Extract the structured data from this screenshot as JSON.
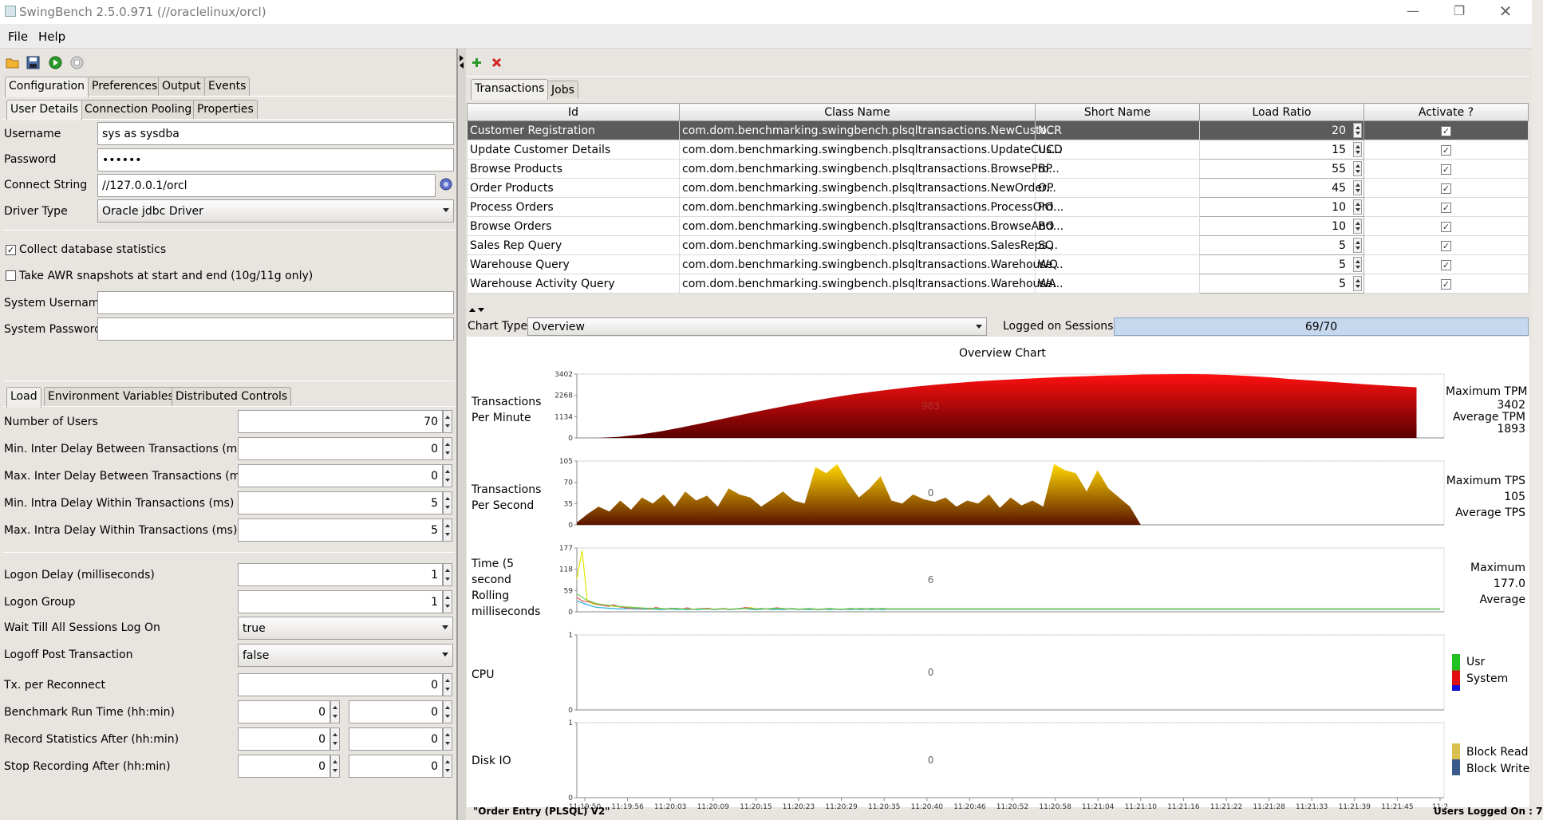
{
  "window": {
    "title": "SwingBench 2.5.0.971  (//oraclelinux/orcl)"
  },
  "menu": {
    "file": "File",
    "help": "Help"
  },
  "config_tabs": {
    "configuration": "Configuration",
    "preferences": "Preferences",
    "output": "Output",
    "events": "Events"
  },
  "user_tabs": {
    "user_details": "User Details",
    "connection_pooling": "Connection Pooling",
    "properties": "Properties"
  },
  "user_details": {
    "username_label": "Username",
    "username": "sys as sysdba",
    "password_label": "Password",
    "password": "••••••",
    "connect_label": "Connect String",
    "connect": "//127.0.0.1/orcl",
    "driver_label": "Driver Type",
    "driver": "Oracle jdbc Driver",
    "collect_stats": "Collect database statistics",
    "awr": "Take AWR snapshots at start and end (10g/11g only)",
    "sys_user_label": "System Username",
    "sys_user": "",
    "sys_pass_label": "System Password",
    "sys_pass": ""
  },
  "load_tabs": {
    "load": "Load",
    "env": "Environment Variables",
    "distributed": "Distributed Controls"
  },
  "load": {
    "users_label": "Number of Users",
    "users": "70",
    "min_inter_label": "Min. Inter Delay Between Transactions (ms)",
    "min_inter": "0",
    "max_inter_label": "Max. Inter Delay Between Transactions (ms)",
    "max_inter": "0",
    "min_intra_label": "Min. Intra Delay Within Transactions (ms)",
    "min_intra": "5",
    "max_intra_label": "Max. Intra Delay Within Transactions (ms)",
    "max_intra": "5",
    "logon_delay_label": "Logon Delay (milliseconds)",
    "logon_delay": "1",
    "logon_group_label": "Logon Group",
    "logon_group": "1",
    "wait_label": "Wait Till All Sessions Log On",
    "wait": "true",
    "logoff_label": "Logoff Post Transaction",
    "logoff": "false",
    "reconnect_label": "Tx. per Reconnect",
    "reconnect": "0",
    "runtime_label": "Benchmark Run Time (hh:min)",
    "runtime_h": "0",
    "runtime_m": "0",
    "record_label": "Record Statistics After (hh:min)",
    "record_h": "0",
    "record_m": "0",
    "stop_label": "Stop Recording After (hh:min)",
    "stop_h": "0",
    "stop_m": "0"
  },
  "right_tabs": {
    "transactions": "Transactions",
    "jobs": "Jobs"
  },
  "table": {
    "headers": [
      "Id",
      "Class Name",
      "Short Name",
      "Load Ratio",
      "Activate ?"
    ],
    "rows": [
      {
        "id": "Customer Registration",
        "cls": "com.dom.benchmarking.swingbench.plsqltransactions.NewCusto...",
        "short": "NCR",
        "ratio": "20",
        "active": "✓"
      },
      {
        "id": "Update Customer Details",
        "cls": "com.dom.benchmarking.swingbench.plsqltransactions.UpdateCus...",
        "short": "UCD",
        "ratio": "15",
        "active": "✓"
      },
      {
        "id": "Browse Products",
        "cls": "com.dom.benchmarking.swingbench.plsqltransactions.BrowsePro...",
        "short": "BP",
        "ratio": "55",
        "active": "✓"
      },
      {
        "id": "Order Products",
        "cls": "com.dom.benchmarking.swingbench.plsqltransactions.NewOrder...",
        "short": "OP",
        "ratio": "45",
        "active": "✓"
      },
      {
        "id": "Process Orders",
        "cls": "com.dom.benchmarking.swingbench.plsqltransactions.ProcessOrd...",
        "short": "PO",
        "ratio": "10",
        "active": "✓"
      },
      {
        "id": "Browse Orders",
        "cls": "com.dom.benchmarking.swingbench.plsqltransactions.BrowseAnd...",
        "short": "BO",
        "ratio": "10",
        "active": "✓"
      },
      {
        "id": "Sales Rep Query",
        "cls": "com.dom.benchmarking.swingbench.plsqltransactions.SalesReps...",
        "short": "SQ",
        "ratio": "5",
        "active": "✓"
      },
      {
        "id": "Warehouse Query",
        "cls": "com.dom.benchmarking.swingbench.plsqltransactions.Warehouse...",
        "short": "WQ",
        "ratio": "5",
        "active": "✓"
      },
      {
        "id": "Warehouse Activity Query",
        "cls": "com.dom.benchmarking.swingbench.plsqltransactions.Warehouse...",
        "short": "WA",
        "ratio": "5",
        "active": "✓"
      }
    ]
  },
  "chart_controls": {
    "type_label": "Chart Type",
    "type": "Overview",
    "sessions_label": "Logged on Sessions",
    "sessions": "69/70"
  },
  "chart": {
    "title": "Overview Chart",
    "tpm_label": "Transactions Per Minute",
    "tpm_center": "983",
    "tpm_right": [
      "Maximum TPM",
      "3402",
      "Average TPM",
      "1893"
    ],
    "tps_label": "Transactions Per Second",
    "tps_center": "0",
    "tps_right": [
      "Maximum TPS",
      "105",
      "Average TPS"
    ],
    "rt_label": "Time (5 second Rolling milliseconds",
    "rt_center": "6",
    "rt_right": [
      "Maximum",
      "177.0",
      "Average"
    ],
    "cpu_label": "CPU",
    "cpu_center": "0",
    "cpu_legend": [
      "Usr",
      "System"
    ],
    "io_label": "Disk IO",
    "io_center": "0",
    "io_legend": [
      "Block Read",
      "Block Write"
    ]
  },
  "chart_data": {
    "type": "area",
    "x_ticks": [
      "11:19:50",
      "11:19:56",
      "11:20:03",
      "11:20:09",
      "11:20:15",
      "11:20:23",
      "11:20:29",
      "11:20:35",
      "11:20:40",
      "11:20:46",
      "11:20:52",
      "11:20:58",
      "11:21:04",
      "11:21:10",
      "11:21:16",
      "11:21:22",
      "11:21:28",
      "11:21:33",
      "11:21:39",
      "11:21:45",
      "11:2"
    ],
    "tpm": {
      "yticks": [
        "3402",
        "2268",
        "1134",
        "0"
      ],
      "ylim": [
        0,
        3402
      ],
      "values": [
        0,
        0,
        60,
        180,
        350,
        560,
        790,
        1030,
        1270,
        1500,
        1720,
        1930,
        2120,
        2300,
        2450,
        2590,
        2720,
        2830,
        2920,
        3010,
        3080,
        3140,
        3190,
        3240,
        3280,
        3320,
        3350,
        3380,
        3395,
        3402,
        3390,
        3360,
        3300,
        3230,
        3140,
        3060,
        2980,
        2900,
        2830,
        2760,
        2700
      ]
    },
    "tps": {
      "yticks": [
        "105",
        "70",
        "35",
        "0"
      ],
      "ylim": [
        0,
        105
      ],
      "values": [
        4,
        18,
        30,
        22,
        40,
        25,
        45,
        35,
        50,
        30,
        55,
        40,
        48,
        30,
        60,
        50,
        45,
        30,
        42,
        55,
        40,
        35,
        95,
        85,
        100,
        70,
        45,
        60,
        80,
        40,
        35,
        50,
        42,
        38,
        45,
        30,
        40,
        35,
        50,
        28,
        45,
        32,
        40,
        30,
        100,
        90,
        85,
        55,
        90,
        60,
        45,
        30,
        0,
        0,
        0,
        0,
        0,
        0,
        0,
        0,
        0,
        0,
        0,
        0,
        0,
        0,
        0,
        0,
        0,
        0,
        0,
        0,
        0,
        0,
        0,
        0,
        0,
        0,
        0,
        0
      ]
    },
    "rt": {
      "yticks": [
        "177",
        "118",
        "59",
        "0"
      ],
      "ylim": [
        0,
        177
      ],
      "series": [
        {
          "color": "#e6e600",
          "values": [
            90,
            170,
            30,
            22,
            20,
            18,
            17,
            15,
            14,
            12,
            13,
            10,
            11,
            9,
            10,
            8,
            9,
            8,
            10,
            9,
            8,
            9,
            7,
            8,
            9,
            8,
            7,
            8,
            9,
            7,
            8,
            9,
            10,
            12,
            8,
            9,
            8,
            9,
            10,
            9,
            8,
            9,
            7,
            8,
            9,
            8,
            7,
            8,
            9,
            8,
            7,
            8,
            9,
            8,
            9,
            8,
            9,
            8,
            9,
            8
          ]
        },
        {
          "color": "#22b0e0",
          "values": [
            30,
            25,
            20,
            15,
            12,
            11,
            10,
            9,
            8,
            8,
            9,
            7,
            8,
            7,
            8,
            7,
            6,
            7,
            8,
            6,
            7,
            6,
            7,
            6,
            7,
            8,
            6,
            7,
            8,
            6,
            7,
            8,
            9,
            7,
            6,
            7,
            8,
            6,
            7,
            6,
            7,
            8,
            6,
            7,
            6,
            7,
            6,
            7,
            6,
            7,
            6,
            7,
            6,
            7,
            6,
            7,
            6,
            7,
            6,
            7
          ]
        },
        {
          "color": "#ee5555",
          "values": [
            40,
            30,
            28,
            25,
            20,
            18,
            15,
            20,
            14,
            12,
            10,
            11,
            9,
            10,
            8,
            12,
            9,
            8,
            10,
            9,
            8,
            11,
            7,
            8,
            9,
            10,
            7,
            8,
            9,
            7,
            8,
            9,
            12,
            10,
            8,
            9,
            8,
            9,
            11,
            9,
            8,
            9,
            7,
            8,
            9,
            8,
            7,
            8,
            9,
            8,
            7,
            8,
            9,
            8,
            9,
            8,
            9,
            8,
            9,
            8
          ]
        },
        {
          "color": "#66cc44",
          "values": [
            50,
            40,
            32,
            26,
            22,
            20,
            18,
            16,
            15,
            14,
            13,
            12,
            11,
            10,
            10,
            9,
            9,
            8,
            9,
            9,
            8,
            8,
            7,
            8,
            8,
            8,
            7,
            8,
            8,
            7,
            8,
            9,
            9,
            9,
            8,
            9,
            8,
            9,
            9,
            9,
            8,
            9,
            7,
            8,
            9,
            8,
            7,
            8,
            9,
            8,
            7,
            8,
            9,
            8,
            9,
            8,
            9,
            8,
            9,
            8
          ]
        }
      ]
    },
    "cpu": {
      "yticks": [
        "1",
        "0"
      ],
      "ylim": [
        0,
        1
      ]
    },
    "io": {
      "yticks": [
        "1",
        "0"
      ],
      "ylim": [
        0,
        1
      ]
    }
  },
  "status": {
    "left": "\"Order Entry (PLSQL) V2\"",
    "right": "Users Logged On : 7"
  }
}
